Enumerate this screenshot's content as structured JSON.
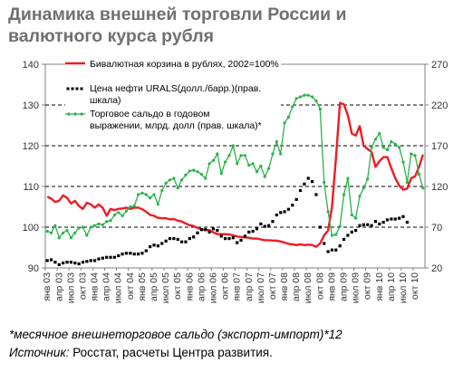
{
  "title_lines": [
    "Динамика внешней торговли России и",
    "валютного курса рубля"
  ],
  "footnote": "*месячное внешнеторговое сальдо (экспорт-импорт)*12",
  "source_label": "Источник:",
  "source_text": " Росстат, расчеты Центра развития.",
  "chart_data": {
    "type": "line",
    "y_left": {
      "min": 90,
      "max": 140,
      "ticks": [
        90,
        100,
        110,
        120,
        130,
        140
      ]
    },
    "y_right": {
      "min": 20,
      "max": 270,
      "ticks": [
        20,
        70,
        120,
        170,
        220,
        270
      ]
    },
    "x_tick_labels": [
      "янв 03",
      "апр 03",
      "июл 03",
      "окт 03",
      "янв 04",
      "апр 04",
      "июл 04",
      "окт 04",
      "янв 05",
      "апр 05",
      "июл 05",
      "окт 05",
      "янв 06",
      "апр 06",
      "июл 06",
      "окт 06",
      "янв 07",
      "апр 07",
      "июл 07",
      "окт 07",
      "янв 08",
      "апр 08",
      "июл 08",
      "окт 08",
      "янв 09",
      "апр 09",
      "июл 09",
      "окт 09",
      "янв 10",
      "апр 10",
      "июл 10",
      "окт 10"
    ],
    "grid_dashed_left_values": [
      100,
      110,
      120,
      130
    ],
    "legend_position": "top-left",
    "series": [
      {
        "name": "Бивалютная корзина в рублях, 2002=100%",
        "axis": "left",
        "color": "#ee1c24",
        "style": "line",
        "start": "янв 03",
        "step": "month",
        "values": [
          107.5,
          107,
          106.2,
          106.5,
          107.8,
          107.2,
          105.8,
          106.5,
          105.2,
          104.5,
          106,
          105.6,
          104.8,
          105.6,
          104.8,
          102.8,
          104.5,
          104.2,
          104.5,
          104.6,
          104.8,
          104.5,
          104.8,
          104.8,
          104.4,
          103.8,
          103,
          102.8,
          102.3,
          102.2,
          102.2,
          101.9,
          102,
          101.6,
          101.4,
          100.9,
          100.5,
          100.3,
          99.8,
          99.5,
          99.3,
          99.3,
          98.7,
          98.3,
          98.3,
          98.3,
          98.2,
          98,
          97.7,
          97.6,
          97.5,
          97.4,
          97.2,
          97.2,
          97,
          96.8,
          96.8,
          96.7,
          96.7,
          96.5,
          96.2,
          95.9,
          95.8,
          95.6,
          95.8,
          95.6,
          95.7,
          95.6,
          95.2,
          96,
          98,
          99.2,
          105,
          117,
          130.5,
          130.2,
          127.5,
          123,
          122.5,
          124.8,
          120,
          119.2,
          118.5,
          114.8,
          116.2,
          117.2,
          117.2,
          114.5,
          112,
          110.2,
          109.2,
          109.5,
          112,
          112.5,
          114.8,
          117.8
        ]
      },
      {
        "name": "Цена нефти URALS(долл./барр.)(прав. шкала)",
        "axis": "right",
        "color": "#000000",
        "style": "markers",
        "start": "янв 03",
        "step": "month",
        "values": [
          29,
          30,
          27,
          24,
          26,
          27,
          27,
          26,
          25,
          27,
          28,
          29,
          29,
          31,
          32,
          33,
          33,
          33,
          35,
          37,
          38,
          38,
          37,
          37,
          38,
          41,
          46,
          48,
          47,
          50,
          53,
          56,
          56,
          55,
          52,
          52,
          56,
          58,
          63,
          67,
          67,
          64,
          68,
          66,
          59,
          56,
          56,
          57,
          51,
          54,
          59,
          64,
          65,
          68,
          74,
          71,
          72,
          77,
          85,
          88,
          89,
          92,
          97,
          104,
          115,
          123,
          130,
          126,
          110,
          70,
          50,
          40,
          42,
          42,
          47,
          55,
          60,
          64,
          66,
          72,
          73,
          73,
          72,
          77,
          74,
          76,
          79,
          80,
          80,
          81,
          83,
          76
        ]
      },
      {
        "name": "Торговое сальдо в годовом выражении, млрд. долл (прав. шкала)*",
        "axis": "right",
        "color": "#2ab24a",
        "style": "line-markers",
        "start": "янв 03",
        "step": "month",
        "values": [
          65,
          63,
          72,
          57,
          63,
          66,
          57,
          63,
          69,
          70,
          60,
          70,
          72,
          74,
          73,
          77,
          78,
          85,
          88,
          84,
          90,
          95,
          96,
          110,
          112,
          110,
          106,
          110,
          98,
          115,
          124,
          128,
          130,
          118,
          128,
          134,
          139,
          140,
          138,
          135,
          130,
          148,
          152,
          160,
          136,
          150,
          158,
          170,
          148,
          158,
          158,
          146,
          148,
          138,
          145,
          132,
          142,
          160,
          175,
          160,
          198,
          205,
          218,
          228,
          230,
          232,
          232,
          230,
          225,
          215,
          125,
          89,
          60,
          61,
          71,
          110,
          130,
          85,
          81,
          108,
          118,
          129,
          168,
          178,
          185,
          168,
          165,
          175,
          172,
          168,
          150,
          125,
          160,
          158,
          135,
          118
        ]
      }
    ]
  }
}
